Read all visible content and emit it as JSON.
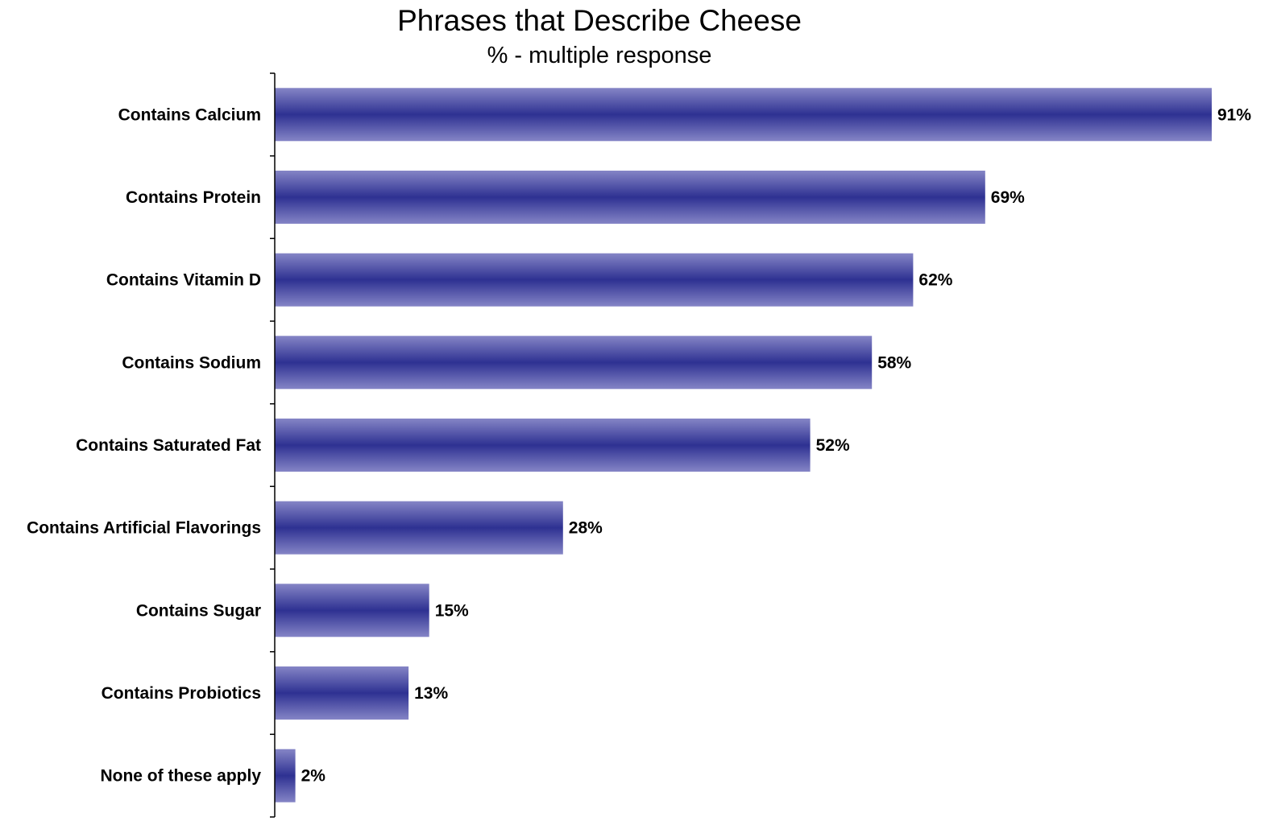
{
  "chart_data": {
    "type": "bar",
    "orientation": "horizontal",
    "title": "Phrases that Describe Cheese",
    "subtitle": "% - multiple response",
    "categories": [
      "Contains Calcium",
      "Contains Protein",
      "Contains Vitamin D",
      "Contains Sodium",
      "Contains Saturated Fat",
      "Contains Artificial Flavorings",
      "Contains Sugar",
      "Contains Probiotics",
      "None of these apply"
    ],
    "values": [
      91,
      69,
      62,
      58,
      52,
      28,
      15,
      13,
      2
    ],
    "value_labels": [
      "91%",
      "69%",
      "62%",
      "58%",
      "52%",
      "28%",
      "15%",
      "13%",
      "2%"
    ],
    "xlim": [
      0,
      100
    ],
    "grid": false,
    "legend": "none",
    "colors": {
      "bar_edge": "#8585c6",
      "bar_center": "#2e3192"
    }
  }
}
